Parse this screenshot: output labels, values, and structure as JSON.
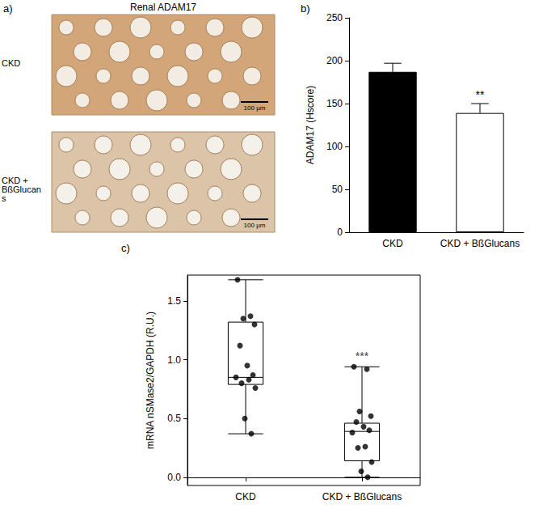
{
  "figure": {
    "panel_labels": [
      "a)",
      "b)",
      "c)"
    ],
    "image_panel": {
      "title": "Renal ADAM17",
      "rows": [
        "CKD",
        "CKD + BßGlucans"
      ],
      "scale_bar": "100 µm"
    }
  },
  "chart_data": [
    {
      "type": "bar",
      "categories": [
        "CKD",
        "CKD + BßGlucans"
      ],
      "values": [
        187,
        139
      ],
      "errors": [
        10,
        11
      ],
      "colors": [
        "#000000",
        "#ffffff"
      ],
      "ylabel": "ADAM17 (Hscore)",
      "ylim": [
        0,
        250
      ],
      "yticks": [
        0,
        50,
        100,
        150,
        200,
        250
      ],
      "grid": false,
      "annotations": [
        {
          "category": "CKD + BßGlucans",
          "label": "**"
        }
      ]
    },
    {
      "type": "boxplot",
      "categories": [
        "CKD",
        "CKD + BßGlucans"
      ],
      "boxes": [
        [
          0.37,
          0.79,
          0.85,
          1.32,
          1.68
        ],
        [
          0.0,
          0.14,
          0.39,
          0.46,
          0.94
        ]
      ],
      "points": [
        [
          1.68,
          1.37,
          1.35,
          1.3,
          1.12,
          0.95,
          0.87,
          0.85,
          0.83,
          0.8,
          0.76,
          0.5,
          0.37
        ],
        [
          0.94,
          0.92,
          0.56,
          0.52,
          0.47,
          0.43,
          0.4,
          0.38,
          0.26,
          0.25,
          0.13,
          0.05,
          0.0
        ]
      ],
      "marker": "circle",
      "ylabel": "mRNA nSMase2/GAPDH (R.U.)",
      "ylim": [
        -0.07,
        1.72
      ],
      "yticks": [
        {
          "value": 0,
          "label": "0.0"
        },
        0.5,
        {
          "value": 1,
          "label": "1.0"
        },
        1.5
      ],
      "grid": false,
      "annotations": [
        {
          "category": "CKD + BßGlucans",
          "label": "***"
        }
      ]
    }
  ]
}
